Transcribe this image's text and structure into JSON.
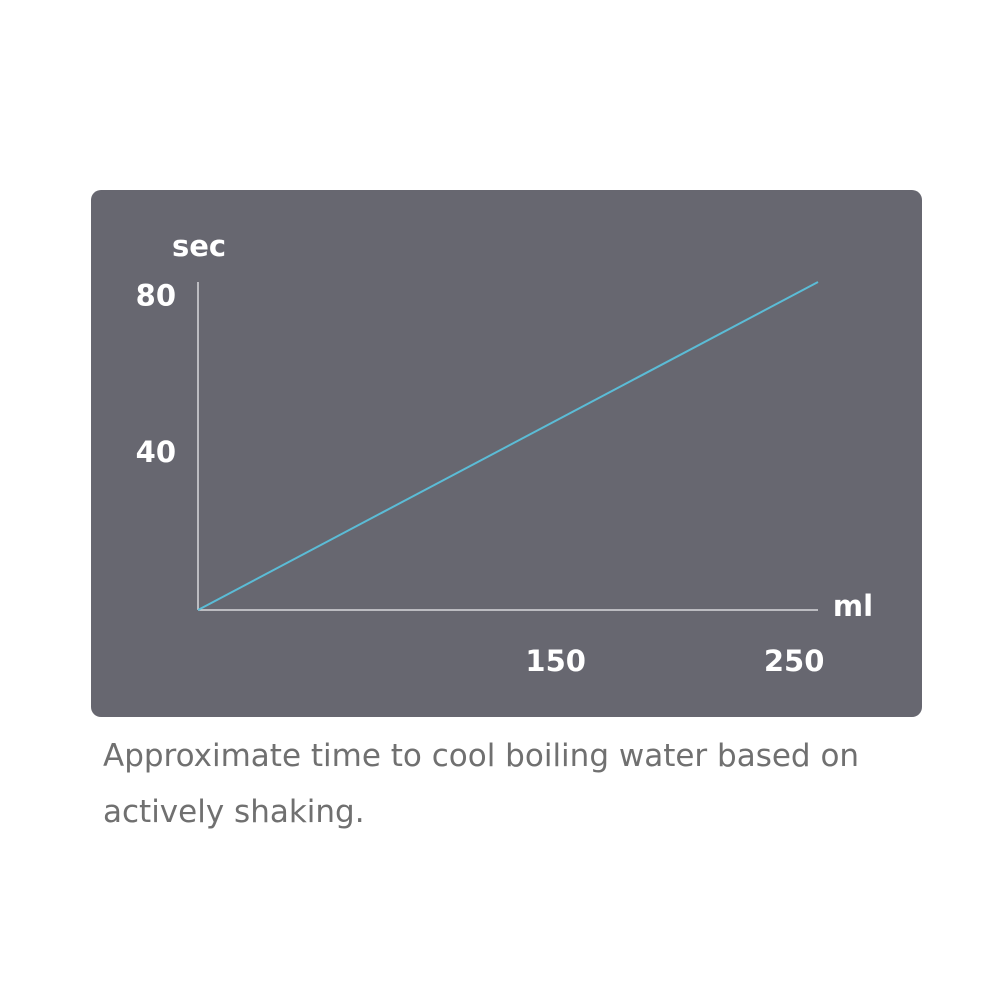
{
  "chart_data": {
    "type": "line",
    "y_label": "sec",
    "x_label": "ml",
    "x": [
      0,
      260
    ],
    "series": [
      {
        "color": "#5bbcd6",
        "values": [
          0,
          84
        ]
      }
    ],
    "xlim": [
      0,
      260
    ],
    "ylim": [
      0,
      84
    ],
    "xticks": [
      150,
      250
    ],
    "yticks": [
      40,
      80
    ],
    "grid": false,
    "caption": "Approximate time to cool boiling water based on actively shaking."
  }
}
